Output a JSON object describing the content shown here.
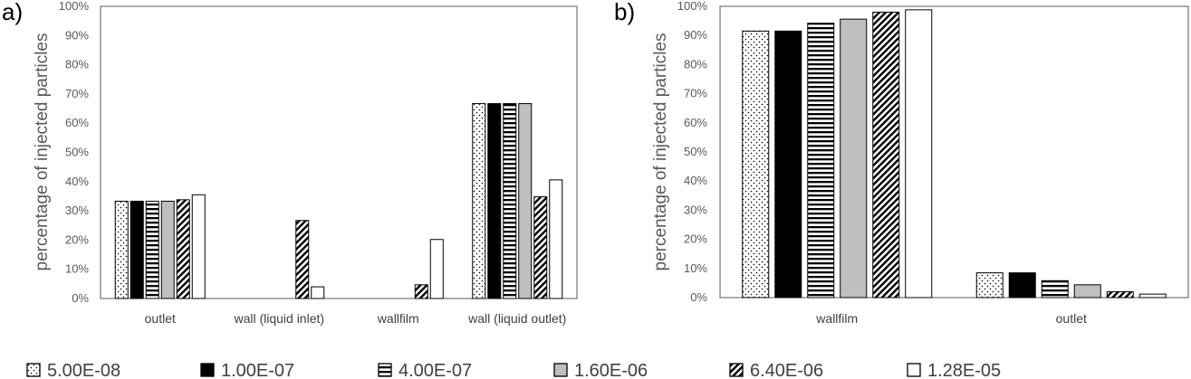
{
  "series_styles": [
    {
      "pattern": "dots",
      "fill": "#ffffff"
    },
    {
      "pattern": "solid",
      "fill": "#000000"
    },
    {
      "pattern": "hlines",
      "fill": "#ffffff"
    },
    {
      "pattern": "solid",
      "fill": "#bfbfbf"
    },
    {
      "pattern": "diag",
      "fill": "#ffffff"
    },
    {
      "pattern": "none",
      "fill": "#ffffff"
    }
  ],
  "chart_data": [
    {
      "type": "bar",
      "panel_label": "a)",
      "ylabel": "percentage of injected particles",
      "ylim": [
        0,
        100
      ],
      "ytick_labels": [
        "0%",
        "10%",
        "20%",
        "30%",
        "40%",
        "50%",
        "60%",
        "70%",
        "80%",
        "90%",
        "100%"
      ],
      "categories": [
        "outlet",
        "wall (liquid inlet)",
        "wallfilm",
        "wall (liquid outlet)"
      ],
      "series": [
        {
          "name": "5.00E-08",
          "values": [
            33.3,
            0,
            0,
            66.7
          ]
        },
        {
          "name": "1.00E-07",
          "values": [
            33.3,
            0,
            0,
            66.7
          ]
        },
        {
          "name": "4.00E-07",
          "values": [
            33.3,
            0,
            0,
            66.7
          ]
        },
        {
          "name": "1.60E-06",
          "values": [
            33.3,
            0,
            0,
            66.7
          ]
        },
        {
          "name": "6.40E-06",
          "values": [
            33.8,
            26.7,
            4.7,
            34.8
          ]
        },
        {
          "name": "1.28E-05",
          "values": [
            35.5,
            4.0,
            20.2,
            40.6
          ]
        }
      ]
    },
    {
      "type": "bar",
      "panel_label": "b)",
      "ylabel": "percentage of injected particles",
      "ylim": [
        0,
        100
      ],
      "ytick_labels": [
        "0%",
        "10%",
        "20%",
        "30%",
        "40%",
        "50%",
        "60%",
        "70%",
        "80%",
        "90%",
        "100%"
      ],
      "categories": [
        "wallfilm",
        "outlet"
      ],
      "series": [
        {
          "name": "5.00E-08",
          "values": [
            91.5,
            8.5
          ]
        },
        {
          "name": "1.00E-07",
          "values": [
            91.5,
            8.5
          ]
        },
        {
          "name": "4.00E-07",
          "values": [
            94.2,
            5.8
          ]
        },
        {
          "name": "1.60E-06",
          "values": [
            95.6,
            4.4
          ]
        },
        {
          "name": "6.40E-06",
          "values": [
            98.0,
            2.0
          ]
        },
        {
          "name": "1.28E-05",
          "values": [
            98.8,
            1.2
          ]
        }
      ]
    }
  ],
  "legend": [
    "5.00E-08",
    "1.00E-07",
    "4.00E-07",
    "1.60E-06",
    "6.40E-06",
    "1.28E-05"
  ]
}
